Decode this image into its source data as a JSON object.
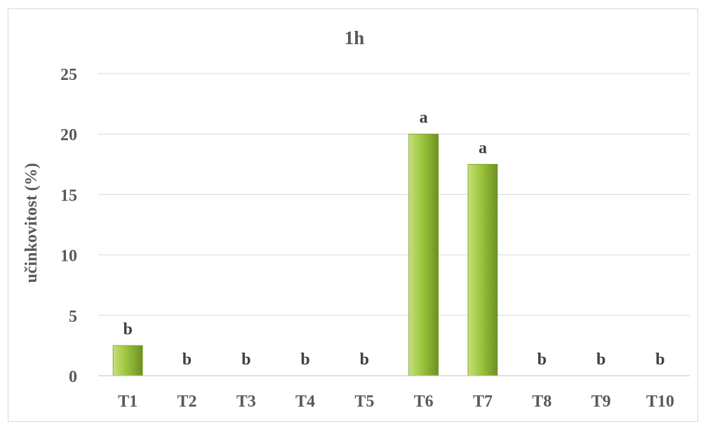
{
  "chart_data": {
    "type": "bar",
    "title": "1h",
    "xlabel": "",
    "ylabel": "učinkovitost (%)",
    "categories": [
      "T1",
      "T2",
      "T3",
      "T4",
      "T5",
      "T6",
      "T7",
      "T8",
      "T9",
      "T10"
    ],
    "values": [
      2.5,
      0,
      0,
      0,
      0,
      20,
      17.5,
      0,
      0,
      0
    ],
    "data_labels": [
      "b",
      "b",
      "b",
      "b",
      "b",
      "a",
      "a",
      "b",
      "b",
      "b"
    ],
    "ylim": [
      0,
      25
    ],
    "yticks": [
      "0",
      "5",
      "10",
      "15",
      "20",
      "25"
    ],
    "grid": true,
    "colors": {
      "bar_light": "#c6e07a",
      "bar_mid": "#9bc53d",
      "bar_dark": "#6e8f22",
      "grid": "#d9d9d9",
      "axis": "#bfbfbf"
    }
  }
}
